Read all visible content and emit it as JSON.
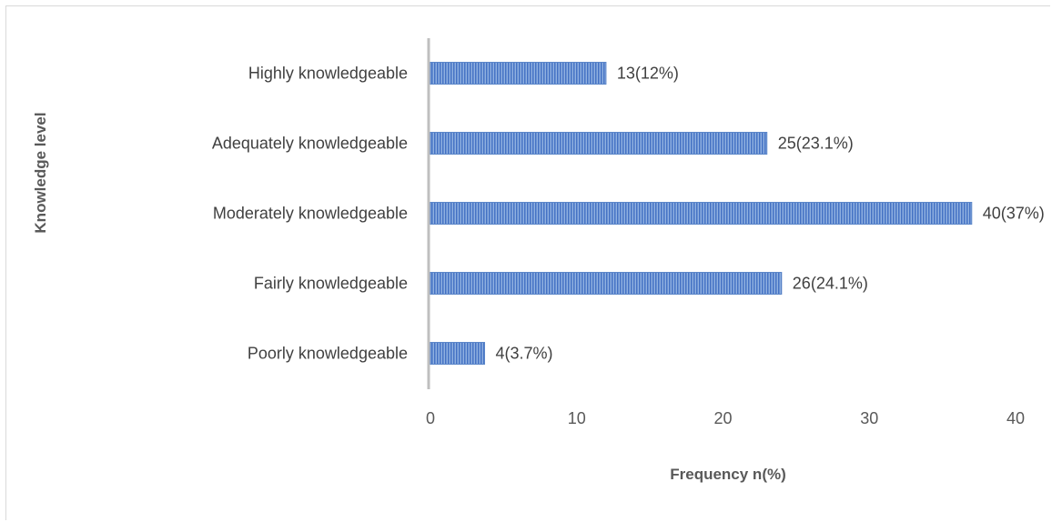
{
  "chart_data": {
    "type": "bar",
    "orientation": "horizontal",
    "categories": [
      "Highly knowledgeable",
      "Adequately knowledgeable",
      "Moderately knowledgeable",
      "Fairly knowledgeable",
      "Poorly knowledgeable"
    ],
    "values": [
      12,
      23,
      37,
      24,
      3.7
    ],
    "data_labels": [
      "13(12%)",
      "25(23.1%)",
      "40(37%)",
      "26(24.1%)",
      "4(3.7%)"
    ],
    "xlabel": "Frequency n(%)",
    "ylabel": "Knowledge level",
    "xlim": [
      0,
      40
    ],
    "xticks": [
      "0",
      "10",
      "20",
      "30",
      "40"
    ],
    "grid": false,
    "colors": {
      "bar": "#5b86c8",
      "bar_stripe": "#2f5597",
      "axis": "#bfbfbf"
    }
  }
}
